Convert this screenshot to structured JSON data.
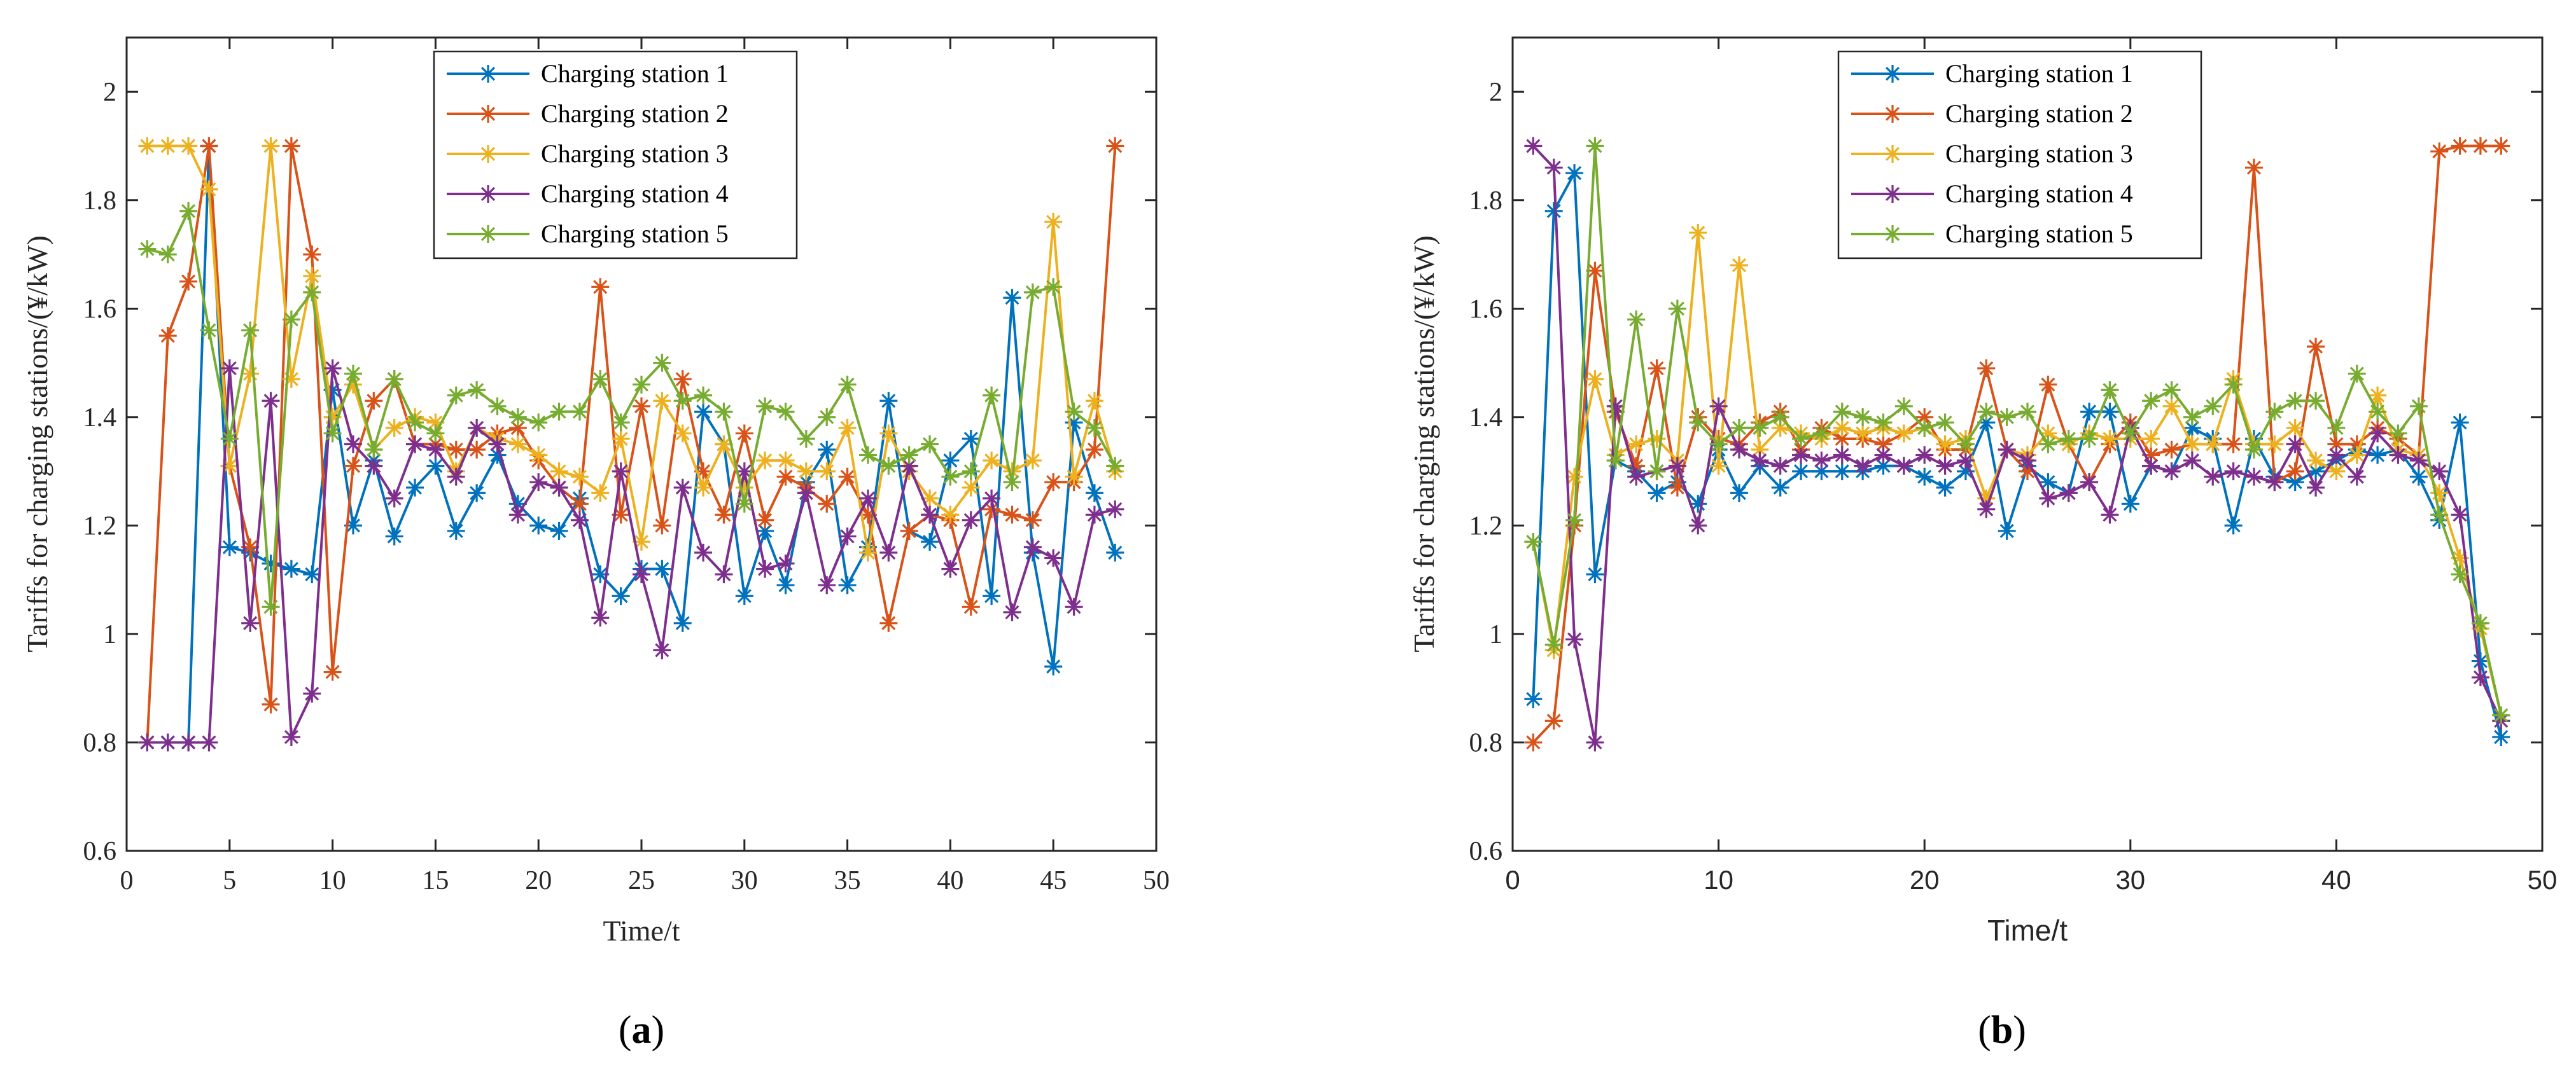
{
  "figure": {
    "panels": [
      "a",
      "b"
    ]
  },
  "chart_data": [
    {
      "type": "line",
      "panel_label": "a",
      "caption_open": "(",
      "caption_letter": "a",
      "caption_close": ")",
      "xlabel": "Time/t",
      "ylabel": "Tariffs for charging stations/(¥/kW)",
      "xlim": [
        0,
        50
      ],
      "ylim": [
        0.6,
        2.1
      ],
      "xticks": [
        0,
        5,
        10,
        15,
        20,
        25,
        30,
        35,
        40,
        45,
        50
      ],
      "xtick_labels": [
        "0",
        "5",
        "10",
        "15",
        "20",
        "25",
        "30",
        "35",
        "40",
        "45",
        "50"
      ],
      "yticks": [
        0.6,
        0.8,
        1.0,
        1.2,
        1.4,
        1.6,
        1.8,
        2.0
      ],
      "ytick_labels": [
        "0.6",
        "0.8",
        "1",
        "1.2",
        "1.4",
        "1.6",
        "1.8",
        "2"
      ],
      "legend_position": "top-center",
      "x": [
        1,
        2,
        3,
        4,
        5,
        6,
        7,
        8,
        9,
        10,
        11,
        12,
        13,
        14,
        15,
        16,
        17,
        18,
        19,
        20,
        21,
        22,
        23,
        24,
        25,
        26,
        27,
        28,
        29,
        30,
        31,
        32,
        33,
        34,
        35,
        36,
        37,
        38,
        39,
        40,
        41,
        42,
        43,
        44,
        45,
        46,
        47,
        48
      ],
      "series": [
        {
          "name": "Charging station 1",
          "color": "#0072BD",
          "values": [
            0.8,
            0.8,
            0.8,
            1.9,
            1.16,
            1.15,
            1.13,
            1.12,
            1.11,
            1.45,
            1.2,
            1.32,
            1.18,
            1.27,
            1.31,
            1.19,
            1.26,
            1.33,
            1.24,
            1.2,
            1.19,
            1.25,
            1.11,
            1.07,
            1.12,
            1.12,
            1.02,
            1.41,
            1.35,
            1.07,
            1.19,
            1.09,
            1.28,
            1.34,
            1.09,
            1.16,
            1.43,
            1.19,
            1.17,
            1.32,
            1.36,
            1.07,
            1.62,
            1.15,
            0.94,
            1.39,
            1.26,
            1.15
          ]
        },
        {
          "name": "Charging station 2",
          "color": "#D95319",
          "values": [
            0.8,
            1.55,
            1.65,
            1.9,
            1.31,
            1.16,
            0.87,
            1.9,
            1.7,
            0.93,
            1.31,
            1.43,
            1.47,
            1.35,
            1.35,
            1.34,
            1.34,
            1.37,
            1.38,
            1.32,
            1.27,
            1.24,
            1.64,
            1.22,
            1.42,
            1.2,
            1.47,
            1.3,
            1.22,
            1.37,
            1.21,
            1.29,
            1.27,
            1.24,
            1.29,
            1.22,
            1.02,
            1.19,
            1.22,
            1.21,
            1.05,
            1.23,
            1.22,
            1.21,
            1.28,
            1.28,
            1.34,
            1.9
          ]
        },
        {
          "name": "Charging station 3",
          "color": "#EDB120",
          "values": [
            1.9,
            1.9,
            1.9,
            1.82,
            1.31,
            1.48,
            1.9,
            1.47,
            1.66,
            1.4,
            1.46,
            1.34,
            1.38,
            1.4,
            1.39,
            1.3,
            1.38,
            1.36,
            1.35,
            1.33,
            1.3,
            1.29,
            1.26,
            1.36,
            1.17,
            1.43,
            1.37,
            1.27,
            1.35,
            1.27,
            1.32,
            1.32,
            1.3,
            1.3,
            1.38,
            1.15,
            1.37,
            1.3,
            1.25,
            1.22,
            1.27,
            1.32,
            1.3,
            1.32,
            1.76,
            1.29,
            1.43,
            1.3
          ]
        },
        {
          "name": "Charging station 4",
          "color": "#7E2F8E",
          "values": [
            0.8,
            0.8,
            0.8,
            0.8,
            1.49,
            1.02,
            1.43,
            0.81,
            0.89,
            1.49,
            1.35,
            1.31,
            1.25,
            1.35,
            1.34,
            1.29,
            1.38,
            1.35,
            1.22,
            1.28,
            1.27,
            1.21,
            1.03,
            1.3,
            1.11,
            0.97,
            1.27,
            1.15,
            1.11,
            1.3,
            1.12,
            1.13,
            1.26,
            1.09,
            1.18,
            1.25,
            1.15,
            1.31,
            1.22,
            1.12,
            1.21,
            1.25,
            1.04,
            1.16,
            1.14,
            1.05,
            1.22,
            1.23
          ]
        },
        {
          "name": "Charging station 5",
          "color": "#77AC30",
          "values": [
            1.71,
            1.7,
            1.78,
            1.56,
            1.36,
            1.56,
            1.05,
            1.58,
            1.63,
            1.37,
            1.48,
            1.34,
            1.47,
            1.39,
            1.37,
            1.44,
            1.45,
            1.42,
            1.4,
            1.39,
            1.41,
            1.41,
            1.47,
            1.39,
            1.46,
            1.5,
            1.43,
            1.44,
            1.41,
            1.24,
            1.42,
            1.41,
            1.36,
            1.4,
            1.46,
            1.33,
            1.31,
            1.33,
            1.35,
            1.29,
            1.3,
            1.44,
            1.28,
            1.63,
            1.64,
            1.41,
            1.38,
            1.31
          ]
        }
      ]
    },
    {
      "type": "line",
      "panel_label": "b",
      "caption_open": "(",
      "caption_letter": "b",
      "caption_close": ")",
      "xlabel": "Time/t",
      "ylabel": "Tariffs for charging stations/(¥/kW)",
      "xlim": [
        0,
        50
      ],
      "ylim": [
        0.6,
        2.1
      ],
      "xticks": [
        0,
        10,
        20,
        30,
        40,
        50
      ],
      "xtick_labels": [
        "0",
        "10",
        "20",
        "30",
        "40",
        "50"
      ],
      "yticks": [
        0.6,
        0.8,
        1.0,
        1.2,
        1.4,
        1.6,
        1.8,
        2.0
      ],
      "ytick_labels": [
        "0.6",
        "0.8",
        "1",
        "1.2",
        "1.4",
        "1.6",
        "1.8",
        "2"
      ],
      "legend_position": "top-left",
      "x": [
        1,
        2,
        3,
        4,
        5,
        6,
        7,
        8,
        9,
        10,
        11,
        12,
        13,
        14,
        15,
        16,
        17,
        18,
        19,
        20,
        21,
        22,
        23,
        24,
        25,
        26,
        27,
        28,
        29,
        30,
        31,
        32,
        33,
        34,
        35,
        36,
        37,
        38,
        39,
        40,
        41,
        42,
        43,
        44,
        45,
        46,
        47,
        48
      ],
      "series": [
        {
          "name": "Charging station 1",
          "color": "#0072BD",
          "values": [
            0.88,
            1.78,
            1.85,
            1.11,
            1.32,
            1.3,
            1.26,
            1.28,
            1.24,
            1.34,
            1.26,
            1.31,
            1.27,
            1.3,
            1.3,
            1.3,
            1.3,
            1.31,
            1.31,
            1.29,
            1.27,
            1.3,
            1.39,
            1.19,
            1.31,
            1.28,
            1.26,
            1.41,
            1.41,
            1.24,
            1.31,
            1.3,
            1.38,
            1.36,
            1.2,
            1.36,
            1.29,
            1.28,
            1.3,
            1.32,
            1.34,
            1.33,
            1.34,
            1.29,
            1.21,
            1.39,
            0.95,
            0.81
          ]
        },
        {
          "name": "Charging station 2",
          "color": "#D95319",
          "values": [
            0.8,
            0.84,
            1.2,
            1.67,
            1.41,
            1.31,
            1.49,
            1.27,
            1.4,
            1.36,
            1.35,
            1.39,
            1.41,
            1.34,
            1.38,
            1.36,
            1.36,
            1.35,
            1.37,
            1.4,
            1.34,
            1.34,
            1.49,
            1.34,
            1.3,
            1.46,
            1.35,
            1.28,
            1.35,
            1.39,
            1.33,
            1.34,
            1.35,
            1.35,
            1.35,
            1.86,
            1.28,
            1.3,
            1.53,
            1.35,
            1.35,
            1.38,
            1.36,
            1.33,
            1.89,
            1.9,
            1.9,
            1.9
          ]
        },
        {
          "name": "Charging station 3",
          "color": "#EDB120",
          "values": [
            1.17,
            0.97,
            1.29,
            1.47,
            1.33,
            1.35,
            1.36,
            1.32,
            1.74,
            1.31,
            1.68,
            1.34,
            1.38,
            1.37,
            1.36,
            1.38,
            1.37,
            1.38,
            1.37,
            1.38,
            1.35,
            1.36,
            1.25,
            1.34,
            1.33,
            1.37,
            1.35,
            1.37,
            1.36,
            1.36,
            1.36,
            1.42,
            1.35,
            1.35,
            1.47,
            1.35,
            1.35,
            1.38,
            1.32,
            1.3,
            1.33,
            1.44,
            1.34,
            1.33,
            1.26,
            1.14,
            1.01,
            0.85
          ]
        },
        {
          "name": "Charging station 4",
          "color": "#7E2F8E",
          "values": [
            1.9,
            1.86,
            0.99,
            0.8,
            1.42,
            1.29,
            1.3,
            1.31,
            1.2,
            1.42,
            1.34,
            1.32,
            1.31,
            1.33,
            1.32,
            1.33,
            1.31,
            1.33,
            1.31,
            1.33,
            1.31,
            1.32,
            1.23,
            1.34,
            1.32,
            1.25,
            1.26,
            1.28,
            1.22,
            1.38,
            1.31,
            1.3,
            1.32,
            1.29,
            1.3,
            1.29,
            1.28,
            1.35,
            1.27,
            1.33,
            1.29,
            1.37,
            1.33,
            1.32,
            1.3,
            1.22,
            0.92,
            0.84
          ]
        },
        {
          "name": "Charging station 5",
          "color": "#77AC30",
          "values": [
            1.17,
            0.98,
            1.21,
            1.9,
            1.32,
            1.58,
            1.3,
            1.6,
            1.39,
            1.35,
            1.38,
            1.38,
            1.4,
            1.36,
            1.37,
            1.41,
            1.4,
            1.39,
            1.42,
            1.38,
            1.39,
            1.35,
            1.41,
            1.4,
            1.41,
            1.35,
            1.36,
            1.36,
            1.45,
            1.37,
            1.43,
            1.45,
            1.4,
            1.42,
            1.46,
            1.34,
            1.41,
            1.43,
            1.43,
            1.38,
            1.48,
            1.41,
            1.37,
            1.42,
            1.22,
            1.11,
            1.02,
            0.85
          ]
        }
      ]
    }
  ]
}
